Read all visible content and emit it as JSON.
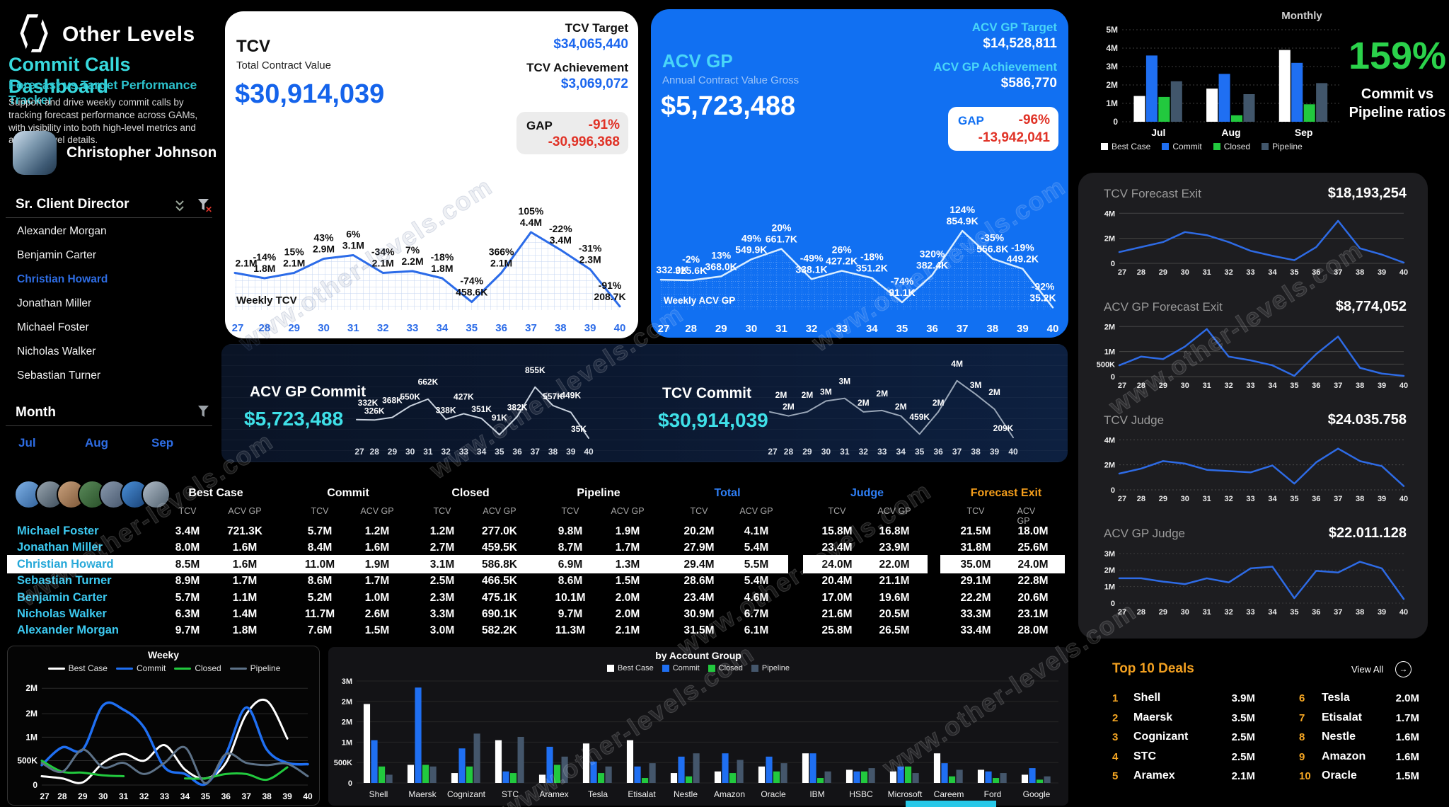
{
  "watermark": "www.other-levels.com",
  "sidebar": {
    "logo_text": "Other Levels",
    "title": "Commit Calls Dashboard",
    "subtitle": "Forecast vs.Target Performance Tracker",
    "description": "Support and drive weekly commit calls by tracking forecast performance across GAMs, with visibility into both high-level metrics and account-level details.",
    "user_name": "Christopher Johnson",
    "role_label": "Sr. Client Director",
    "people": [
      "Alexander Morgan",
      "Benjamin Carter",
      "Christian Howard",
      "Jonathan Miller",
      "Michael Foster",
      "Nicholas Walker",
      "Sebastian Turner"
    ],
    "selected_person": "Christian Howard",
    "month_label": "Month",
    "months": [
      "Jul",
      "Aug",
      "Sep"
    ]
  },
  "tcv_card": {
    "title": "TCV",
    "subtitle": "Total Contract Value",
    "value": "$30,914,039",
    "target_label": "TCV Target",
    "target_value": "$34,065,440",
    "achievement_label": "TCV Achievement",
    "achievement_value": "$3,069,072",
    "gap_label": "GAP",
    "gap_pct": "-91%",
    "gap_value": "-30,996,368",
    "chart_label": "Weekly TCV"
  },
  "acv_card": {
    "title": "ACV GP",
    "subtitle": "Annual Contract Value Gross",
    "value": "$5,723,488",
    "target_label": "ACV GP Target",
    "target_value": "$14,528,811",
    "achievement_label": "ACV GP Achievement",
    "achievement_value": "$586,770",
    "gap_label": "GAP",
    "gap_pct": "-96%",
    "gap_value": "-13,942,041",
    "chart_label": "Weekly ACV GP"
  },
  "monthly": {
    "title": "Monthly",
    "ratio": "159%",
    "caption1": "Commit vs",
    "caption2": "Pipeline ratios"
  },
  "commit_band": {
    "acv_label": "ACV GP Commit",
    "acv_value": "$5,723,488",
    "tcv_label": "TCV Commit",
    "tcv_value": "$30,914,039"
  },
  "right_panels": [
    {
      "title": "TCV Forecast Exit",
      "value": "$18,193,254"
    },
    {
      "title": "ACV GP Forecast Exit",
      "value": "$8,774,052"
    },
    {
      "title": "TCV Judge",
      "value": "$24.035.758"
    },
    {
      "title": "ACV GP Judge",
      "value": "$22.011.128"
    }
  ],
  "table": {
    "groups": [
      {
        "label": "Best Case",
        "color": "#ffffff"
      },
      {
        "label": "Commit",
        "color": "#ffffff"
      },
      {
        "label": "Closed",
        "color": "#ffffff"
      },
      {
        "label": "Pipeline",
        "color": "#ffffff"
      },
      {
        "label": "Total",
        "color": "#2f7ff5"
      },
      {
        "label": "Judge",
        "color": "#2f7ff5"
      },
      {
        "label": "Forecast Exit",
        "color": "#f59e1b"
      }
    ],
    "subheaders": [
      "TCV",
      "ACV GP"
    ],
    "rows": [
      {
        "name": "Michael Foster",
        "highlight": false,
        "values": [
          "3.4M",
          "721.3K",
          "5.7M",
          "1.2M",
          "1.2M",
          "277.0K",
          "9.8M",
          "1.9M",
          "20.2M",
          "4.1M",
          "15.8M",
          "16.8M",
          "21.5M",
          "18.0M"
        ]
      },
      {
        "name": "Jonathan Miller",
        "highlight": false,
        "values": [
          "8.0M",
          "1.6M",
          "8.4M",
          "1.6M",
          "2.7M",
          "459.5K",
          "8.7M",
          "1.7M",
          "27.9M",
          "5.4M",
          "23.4M",
          "23.9M",
          "31.8M",
          "25.6M"
        ]
      },
      {
        "name": "Christian Howard",
        "highlight": true,
        "values": [
          "8.5M",
          "1.6M",
          "11.0M",
          "1.9M",
          "3.1M",
          "586.8K",
          "6.9M",
          "1.3M",
          "29.4M",
          "5.5M",
          "24.0M",
          "22.0M",
          "35.0M",
          "24.0M"
        ]
      },
      {
        "name": "Sebastian Turner",
        "highlight": false,
        "values": [
          "8.9M",
          "1.7M",
          "8.6M",
          "1.7M",
          "2.5M",
          "466.5K",
          "8.6M",
          "1.5M",
          "28.6M",
          "5.4M",
          "20.4M",
          "21.1M",
          "29.1M",
          "22.8M"
        ]
      },
      {
        "name": "Benjamin Carter",
        "highlight": false,
        "values": [
          "5.7M",
          "1.1M",
          "5.2M",
          "1.0M",
          "2.3M",
          "475.1K",
          "10.1M",
          "2.0M",
          "23.4M",
          "4.6M",
          "17.0M",
          "19.6M",
          "22.2M",
          "20.6M"
        ]
      },
      {
        "name": "Nicholas Walker",
        "highlight": false,
        "values": [
          "6.3M",
          "1.4M",
          "11.7M",
          "2.6M",
          "3.3M",
          "690.1K",
          "9.7M",
          "2.0M",
          "30.9M",
          "6.7M",
          "21.6M",
          "20.5M",
          "33.3M",
          "23.1M"
        ]
      },
      {
        "name": "Alexander Morgan",
        "highlight": false,
        "values": [
          "9.7M",
          "1.8M",
          "7.6M",
          "1.5M",
          "3.0M",
          "582.2K",
          "11.3M",
          "2.1M",
          "31.5M",
          "6.1M",
          "25.8M",
          "26.5M",
          "33.4M",
          "28.0M"
        ]
      }
    ]
  },
  "weeky": {
    "title": "Weeky"
  },
  "account_group": {
    "title": "by Account Group"
  },
  "top_deals": {
    "title": "Top 10 Deals",
    "view_all": "View All",
    "deals": [
      {
        "rank": "1",
        "name": "Shell",
        "value": "3.9M"
      },
      {
        "rank": "2",
        "name": "Maersk",
        "value": "3.5M"
      },
      {
        "rank": "3",
        "name": "Cognizant",
        "value": "2.5M"
      },
      {
        "rank": "4",
        "name": "STC",
        "value": "2.5M"
      },
      {
        "rank": "5",
        "name": "Aramex",
        "value": "2.1M"
      },
      {
        "rank": "6",
        "name": "Tesla",
        "value": "2.0M"
      },
      {
        "rank": "7",
        "name": "Etisalat",
        "value": "1.7M"
      },
      {
        "rank": "8",
        "name": "Nestle",
        "value": "1.6M"
      },
      {
        "rank": "9",
        "name": "Amazon",
        "value": "1.6M"
      },
      {
        "rank": "10",
        "name": "Oracle",
        "value": "1.5M"
      }
    ]
  },
  "chart_data": {
    "weekly_tcv": {
      "type": "line",
      "title": "Weekly TCV",
      "x": [
        "27",
        "28",
        "29",
        "30",
        "31",
        "32",
        "33",
        "34",
        "35",
        "36",
        "37",
        "38",
        "39",
        "40"
      ],
      "values": [
        2100,
        1800,
        2100,
        2900,
        3100,
        2100,
        2200,
        1800,
        458.6,
        2100,
        4400,
        3400,
        2300,
        208.7
      ],
      "pct": [
        "",
        "-14%",
        "15%",
        "43%",
        "6%",
        "-34%",
        "7%",
        "-18%",
        "-74%",
        "366%",
        "105%",
        "-22%",
        "-31%",
        "-91%"
      ],
      "labels": [
        "2.1M",
        "1.8M",
        "2.1M",
        "2.9M",
        "3.1M",
        "2.1M",
        "2.2M",
        "1.8M",
        "458.6K",
        "2.1M",
        "4.4M",
        "3.4M",
        "2.3M",
        "208.7K"
      ],
      "ymax": 5600
    },
    "weekly_acv": {
      "type": "line",
      "title": "Weekly ACV GP",
      "x": [
        "27",
        "28",
        "29",
        "30",
        "31",
        "32",
        "33",
        "34",
        "35",
        "36",
        "37",
        "38",
        "39",
        "40"
      ],
      "values": [
        332.0,
        325.6,
        368.0,
        549.9,
        661.7,
        338.1,
        427.2,
        351.2,
        91.1,
        382.4,
        854.9,
        556.8,
        449.2,
        35.2
      ],
      "pct": [
        "",
        "-2%",
        "13%",
        "49%",
        "20%",
        "-49%",
        "26%",
        "-18%",
        "-74%",
        "320%",
        "124%",
        "-35%",
        "-19%",
        "-92%"
      ],
      "labels": [
        "332.0K",
        "325.6K",
        "368.0K",
        "549.9K",
        "661.7K",
        "338.1K",
        "427.2K",
        "351.2K",
        "91.1K",
        "382.4K",
        "854.9K",
        "556.8K",
        "449.2K",
        "35.2K"
      ],
      "ymax": 1060
    },
    "monthly": {
      "type": "bar",
      "title": "Monthly",
      "categories": [
        "Jul",
        "Aug",
        "Sep"
      ],
      "series": [
        {
          "name": "Best Case",
          "color": "#ffffff",
          "values": [
            1400,
            1800,
            3900
          ]
        },
        {
          "name": "Commit",
          "color": "#1f6ff2",
          "values": [
            3600,
            2600,
            3200
          ]
        },
        {
          "name": "Closed",
          "color": "#22c93e",
          "values": [
            1350,
            350,
            950
          ]
        },
        {
          "name": "Pipeline",
          "color": "#41566b",
          "values": [
            2200,
            1500,
            2100
          ]
        }
      ],
      "ymax": 5000,
      "yticks": [
        {
          "v": 5000,
          "label": "5M"
        },
        {
          "v": 4000,
          "label": "4M"
        },
        {
          "v": 3000,
          "label": "3M"
        },
        {
          "v": 2000,
          "label": "2M"
        },
        {
          "v": 1000,
          "label": "1M"
        },
        {
          "v": 0,
          "label": "0"
        }
      ]
    },
    "tcv_fe": {
      "type": "line",
      "title": "TCV Forecast Exit",
      "x": [
        "27",
        "28",
        "29",
        "30",
        "31",
        "32",
        "33",
        "34",
        "35",
        "36",
        "37",
        "38",
        "39",
        "40"
      ],
      "values": [
        900,
        1300,
        1700,
        2500,
        2250,
        1700,
        1000,
        600,
        250,
        1300,
        3400,
        1200,
        700,
        60
      ],
      "ymax": 4300,
      "yticks": [
        {
          "v": 4000,
          "label": "4M"
        },
        {
          "v": 2000,
          "label": "2M"
        },
        {
          "v": 0,
          "label": "0"
        }
      ]
    },
    "acv_fe": {
      "type": "line",
      "title": "ACV GP Forecast Exit",
      "x": [
        "27",
        "28",
        "29",
        "30",
        "31",
        "32",
        "33",
        "34",
        "35",
        "36",
        "37",
        "38",
        "39",
        "40"
      ],
      "values": [
        450,
        800,
        700,
        1200,
        1900,
        800,
        650,
        450,
        30,
        900,
        1600,
        350,
        120,
        30
      ],
      "ymax": 2150,
      "yticks": [
        {
          "v": 2000,
          "label": "2M"
        },
        {
          "v": 1000,
          "label": "1M"
        },
        {
          "v": 500,
          "label": "500K"
        },
        {
          "v": 0,
          "label": "0"
        }
      ]
    },
    "tcv_judge": {
      "type": "line",
      "title": "TCV Judge",
      "x": [
        "27",
        "28",
        "29",
        "30",
        "31",
        "32",
        "33",
        "34",
        "35",
        "36",
        "37",
        "38",
        "39",
        "40"
      ],
      "values": [
        1300,
        1700,
        2300,
        2100,
        1600,
        1500,
        1400,
        1950,
        500,
        2200,
        3300,
        2300,
        1900,
        300
      ],
      "ymax": 4300,
      "yticks": [
        {
          "v": 4000,
          "label": "4M"
        },
        {
          "v": 2000,
          "label": "2M"
        },
        {
          "v": 0,
          "label": "0"
        }
      ]
    },
    "acv_judge": {
      "type": "line",
      "title": "ACV GP Judge",
      "x": [
        "27",
        "28",
        "29",
        "30",
        "31",
        "32",
        "33",
        "34",
        "35",
        "36",
        "37",
        "38",
        "39",
        "40"
      ],
      "values": [
        1500,
        1500,
        1300,
        1150,
        1500,
        1250,
        2100,
        2200,
        300,
        1950,
        1850,
        2500,
        2100,
        250
      ],
      "ymax": 3250,
      "yticks": [
        {
          "v": 3000,
          "label": "3M"
        },
        {
          "v": 2000,
          "label": "2M"
        },
        {
          "v": 1000,
          "label": "1M"
        },
        {
          "v": 0,
          "label": "0"
        }
      ]
    },
    "acv_spark": {
      "type": "line",
      "title": "ACV GP Commit weekly",
      "x": [
        "27",
        "28",
        "29",
        "30",
        "31",
        "32",
        "33",
        "34",
        "35",
        "36",
        "37",
        "38",
        "39",
        "40"
      ],
      "values": [
        332,
        326,
        368,
        550,
        662,
        338,
        427,
        351,
        91,
        382,
        855,
        557,
        449,
        35
      ],
      "labels": [
        "332K",
        "326K",
        "368K",
        "550K",
        "662K",
        "338K",
        "427K",
        "351K",
        "91K",
        "382K",
        "855K",
        "557K",
        "449K",
        "35K"
      ],
      "ymax": 1000
    },
    "tcv_spark": {
      "type": "line",
      "title": "TCV Commit weekly",
      "x": [
        "27",
        "28",
        "29",
        "30",
        "31",
        "32",
        "33",
        "34",
        "35",
        "36",
        "37",
        "38",
        "39",
        "40"
      ],
      "values": [
        2100,
        1800,
        2100,
        2900,
        3100,
        2100,
        2200,
        1800,
        459,
        2100,
        4400,
        3400,
        2300,
        209
      ],
      "labels": [
        "2M",
        "2M",
        "2M",
        "3M",
        "3M",
        "2M",
        "2M",
        "2M",
        "459K",
        "2M",
        "4M",
        "3M",
        "2M",
        "209K"
      ],
      "ymax": 4600
    },
    "weeky": {
      "type": "multiline",
      "title": "Weeky",
      "x": [
        "27",
        "28",
        "29",
        "30",
        "31",
        "32",
        "33",
        "34",
        "35",
        "36",
        "37",
        "38",
        "39",
        "40"
      ],
      "series": [
        {
          "name": "Best Case",
          "color": "#ffffff",
          "values": [
            200,
            150,
            60,
            500,
            700,
            550,
            900,
            350,
            150,
            500,
            1600,
            1900,
            1050,
            null
          ]
        },
        {
          "name": "Commit",
          "color": "#1f6ff2",
          "values": [
            450,
            850,
            800,
            1800,
            1700,
            1300,
            400,
            250,
            20,
            700,
            1750,
            800,
            500,
            470
          ]
        },
        {
          "name": "Closed",
          "color": "#22c93e",
          "values": [
            550,
            300,
            280,
            220,
            200,
            null,
            null,
            150,
            150,
            250,
            250,
            120,
            400,
            null
          ]
        },
        {
          "name": "Pipeline",
          "color": "#5d7288",
          "values": [
            500,
            300,
            800,
            400,
            500,
            250,
            500,
            850,
            40,
            700,
            500,
            450,
            480,
            200
          ]
        }
      ],
      "ymax": 2300,
      "yticks": [
        {
          "f": 0.05,
          "label": "2M"
        },
        {
          "f": 0.3,
          "label": "2M"
        },
        {
          "f": 0.53,
          "label": "1M"
        },
        {
          "f": 0.76,
          "label": "500K"
        },
        {
          "f": 1,
          "label": "0"
        }
      ]
    },
    "account": {
      "type": "bar",
      "title": "by Account Group",
      "categories": [
        "Shell",
        "Maersk",
        "Cognizant",
        "STC",
        "Aramex",
        "Tesla",
        "Etisalat",
        "Nestle",
        "Amazon",
        "Oracle",
        "IBM",
        "HSBC",
        "Microsoft",
        "Careem",
        "Ford",
        "Google"
      ],
      "series": [
        {
          "name": "Best Case",
          "color": "#ffffff",
          "values": [
            2400,
            550,
            300,
            1300,
            250,
            1200,
            1300,
            300,
            350,
            500,
            900,
            400,
            350,
            900,
            400,
            250
          ]
        },
        {
          "name": "Commit",
          "color": "#1f6ff2",
          "values": [
            1300,
            2900,
            1050,
            350,
            1100,
            650,
            500,
            800,
            900,
            800,
            900,
            350,
            500,
            600,
            350,
            450
          ]
        },
        {
          "name": "Closed",
          "color": "#22c93e",
          "values": [
            500,
            550,
            500,
            300,
            550,
            300,
            150,
            200,
            300,
            350,
            150,
            350,
            500,
            200,
            150,
            100
          ]
        },
        {
          "name": "Pipeline",
          "color": "#44566b",
          "values": [
            250,
            500,
            1500,
            1400,
            800,
            500,
            600,
            900,
            700,
            600,
            350,
            450,
            300,
            400,
            300,
            200
          ]
        }
      ],
      "ymax": 3100,
      "yticks": [
        {
          "f": 0,
          "label": "3M"
        },
        {
          "f": 0.2,
          "label": "2M"
        },
        {
          "f": 0.4,
          "label": "2M"
        },
        {
          "f": 0.6,
          "label": "1M"
        },
        {
          "f": 0.8,
          "label": "500K"
        },
        {
          "f": 1,
          "label": "0"
        }
      ]
    }
  }
}
